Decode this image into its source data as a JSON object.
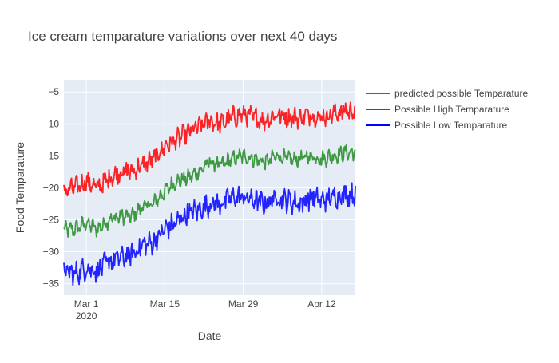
{
  "chart_data": {
    "type": "line",
    "title": "Ice cream temparature variations over next 40 days",
    "xlabel": "Date",
    "ylabel": "Food Temparature",
    "x_range": [
      "2020-02-26",
      "2020-04-18"
    ],
    "x_ticks": [
      {
        "date": "2020-03-01",
        "label": "Mar 1",
        "sublabel": "2020"
      },
      {
        "date": "2020-03-15",
        "label": "Mar 15",
        "sublabel": ""
      },
      {
        "date": "2020-03-29",
        "label": "Mar 29",
        "sublabel": ""
      },
      {
        "date": "2020-04-12",
        "label": "Apr 12",
        "sublabel": ""
      }
    ],
    "ylim": [
      -36.8,
      -3.1
    ],
    "y_ticks": [
      -35,
      -30,
      -25,
      -20,
      -15,
      -10,
      -5
    ],
    "grid": true,
    "legend_position": "top-right outside",
    "series": [
      {
        "name": "predicted possible Temparature",
        "color": "#228B22",
        "x": [
          "2020-02-26",
          "2020-02-28",
          "2020-03-01",
          "2020-03-03",
          "2020-03-05",
          "2020-03-07",
          "2020-03-09",
          "2020-03-11",
          "2020-03-13",
          "2020-03-15",
          "2020-03-17",
          "2020-03-19",
          "2020-03-21",
          "2020-03-23",
          "2020-03-25",
          "2020-03-27",
          "2020-03-29",
          "2020-03-31",
          "2020-04-02",
          "2020-04-04",
          "2020-04-06",
          "2020-04-08",
          "2020-04-10",
          "2020-04-12",
          "2020-04-14",
          "2020-04-16",
          "2020-04-18"
        ],
        "y": [
          -26.5,
          -26.5,
          -25.5,
          -26.5,
          -25.0,
          -24.5,
          -24.5,
          -23.0,
          -22.5,
          -20.5,
          -19.0,
          -18.5,
          -17.5,
          -16.0,
          -16.5,
          -15.5,
          -15.0,
          -15.5,
          -16.0,
          -15.0,
          -15.5,
          -15.5,
          -15.0,
          -15.5,
          -15.0,
          -14.5,
          -14.5
        ]
      },
      {
        "name": "Possible High Temparature",
        "color": "#FF0000",
        "x": [
          "2020-02-26",
          "2020-02-28",
          "2020-03-01",
          "2020-03-03",
          "2020-03-05",
          "2020-03-07",
          "2020-03-09",
          "2020-03-11",
          "2020-03-13",
          "2020-03-15",
          "2020-03-17",
          "2020-03-19",
          "2020-03-21",
          "2020-03-23",
          "2020-03-25",
          "2020-03-27",
          "2020-03-29",
          "2020-03-31",
          "2020-04-02",
          "2020-04-04",
          "2020-04-06",
          "2020-04-08",
          "2020-04-10",
          "2020-04-12",
          "2020-04-14",
          "2020-04-16",
          "2020-04-18"
        ],
        "y": [
          -20.5,
          -20.0,
          -19.0,
          -20.0,
          -18.5,
          -17.5,
          -17.5,
          -16.5,
          -15.5,
          -13.5,
          -12.5,
          -11.5,
          -10.5,
          -9.5,
          -10.0,
          -9.0,
          -8.5,
          -9.0,
          -9.5,
          -8.5,
          -9.0,
          -9.0,
          -8.5,
          -9.0,
          -8.5,
          -8.0,
          -8.0
        ]
      },
      {
        "name": "Possible Low Temparature",
        "color": "#0000FF",
        "x": [
          "2020-02-26",
          "2020-02-28",
          "2020-03-01",
          "2020-03-03",
          "2020-03-05",
          "2020-03-07",
          "2020-03-09",
          "2020-03-11",
          "2020-03-13",
          "2020-03-15",
          "2020-03-17",
          "2020-03-19",
          "2020-03-21",
          "2020-03-23",
          "2020-03-25",
          "2020-03-27",
          "2020-03-29",
          "2020-03-31",
          "2020-04-02",
          "2020-04-04",
          "2020-04-06",
          "2020-04-08",
          "2020-04-10",
          "2020-04-12",
          "2020-04-14",
          "2020-04-16",
          "2020-04-18"
        ],
        "y": [
          -33.0,
          -33.5,
          -32.5,
          -33.0,
          -31.5,
          -31.0,
          -30.5,
          -29.0,
          -28.5,
          -26.5,
          -25.5,
          -24.0,
          -23.5,
          -22.5,
          -22.5,
          -21.5,
          -21.5,
          -22.0,
          -22.5,
          -21.5,
          -22.0,
          -22.5,
          -21.5,
          -22.0,
          -21.5,
          -21.0,
          -21.0
        ]
      }
    ]
  }
}
